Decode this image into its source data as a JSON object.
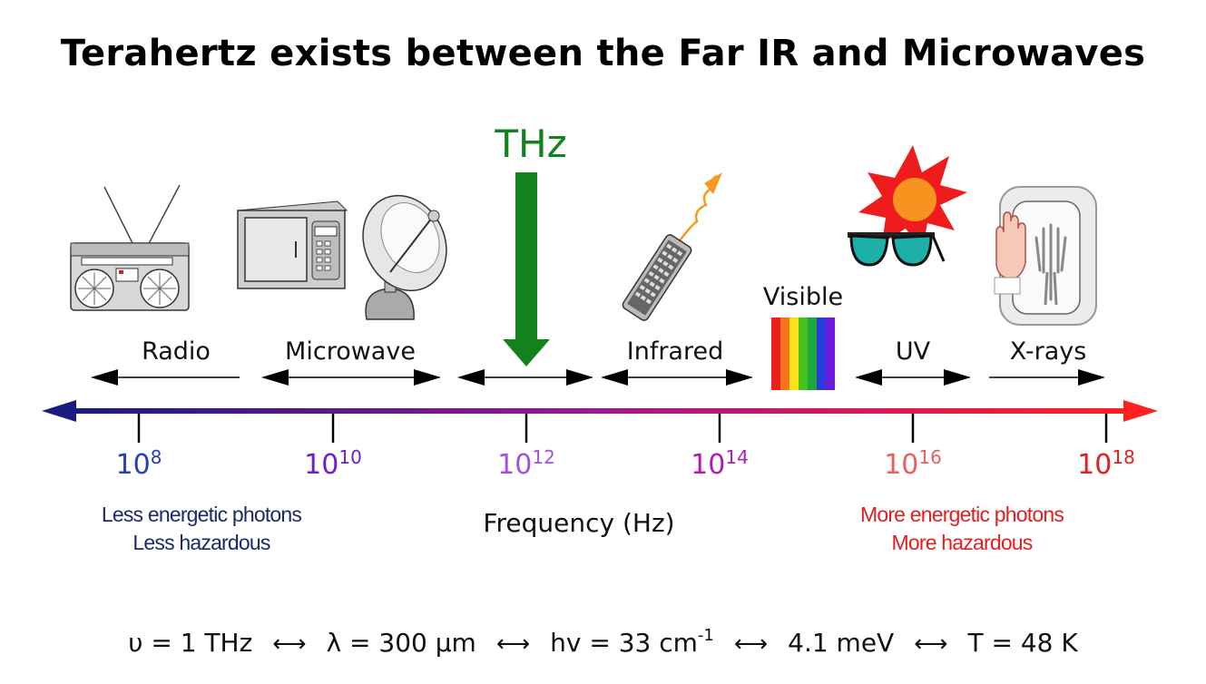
{
  "title": "Terahertz exists between the Far IR and Microwaves",
  "thz_label": "THz",
  "visible_label": "Visible",
  "bands": [
    {
      "label": "Radio"
    },
    {
      "label": "Microwave"
    },
    {
      "label": "Infrared"
    },
    {
      "label": "UV"
    },
    {
      "label": "X-rays"
    }
  ],
  "ticks": [
    {
      "base": "10",
      "exp": "8",
      "color": "#2a3fb0"
    },
    {
      "base": "10",
      "exp": "10",
      "color": "#6a22c8"
    },
    {
      "base": "10",
      "exp": "12",
      "color": "#a052e0"
    },
    {
      "base": "10",
      "exp": "14",
      "color": "#b01cb0"
    },
    {
      "base": "10",
      "exp": "16",
      "color": "#ea6060"
    },
    {
      "base": "10",
      "exp": "18",
      "color": "#e02020"
    }
  ],
  "axis_label": "Frequency (Hz)",
  "left_note": {
    "line1": "Less energetic photons",
    "line2": "Less hazardous",
    "color": "#1a2a6a"
  },
  "right_note": {
    "line1": "More energetic photons",
    "line2": "More hazardous",
    "color": "#e02020"
  },
  "formula": {
    "nu": "υ = 1 THz",
    "lambda": "λ = 300 μm",
    "hv": "hv = 33 cm",
    "hv_exp": "-1",
    "energy": "4.1 meV",
    "temp": "T = 48 K",
    "arrow": "⟷"
  },
  "colors": {
    "axis_left": "#1a1a80",
    "axis_mid": "#a01890",
    "axis_right": "#ff2020",
    "thz_green": "#12821c"
  },
  "icons": [
    "radio-icon",
    "microwave-oven-icon",
    "satellite-dish-icon",
    "remote-control-icon",
    "sunglasses-icon",
    "sun-icon",
    "xray-hand-icon"
  ]
}
